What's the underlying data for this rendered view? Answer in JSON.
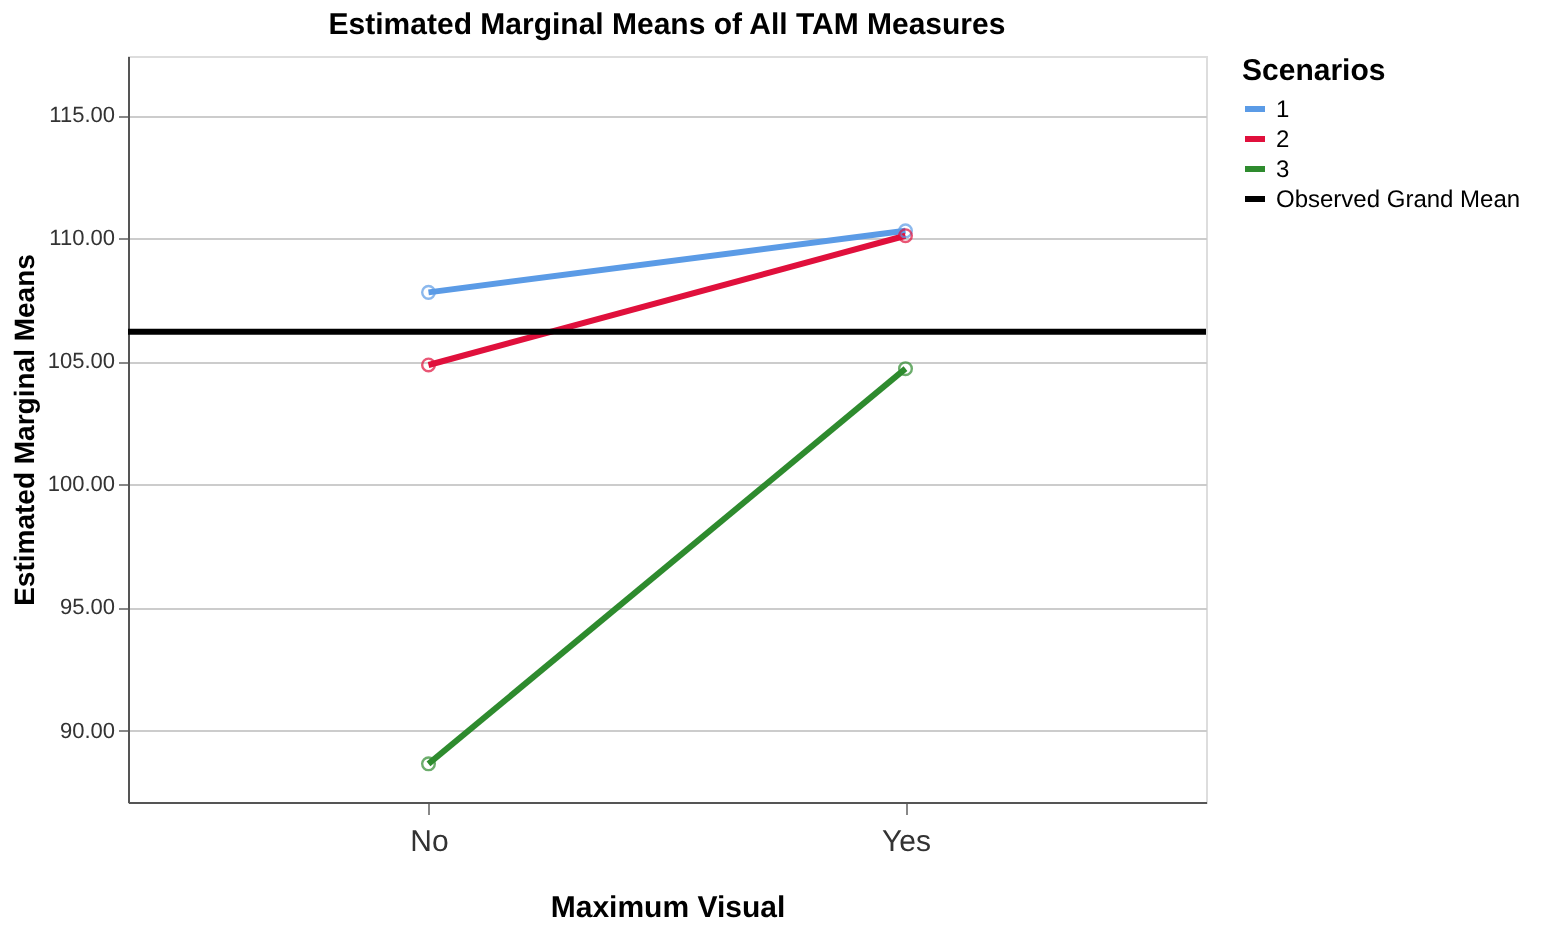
{
  "chart_data": {
    "type": "line",
    "title": "Estimated Marginal Means of All TAM Measures",
    "xlabel": "Maximum Visual",
    "ylabel": "Estimated Marginal Means",
    "legend_title": "Scenarios",
    "categories": [
      "No",
      "Yes"
    ],
    "series": [
      {
        "name": "1",
        "color": "#5b9be6",
        "values": [
          107.8,
          110.3
        ]
      },
      {
        "name": "2",
        "color": "#e0103c",
        "values": [
          104.85,
          110.1
        ]
      },
      {
        "name": "3",
        "color": "#2e8b2e",
        "values": [
          88.65,
          104.7
        ]
      }
    ],
    "ref_lines": [
      {
        "axis": "y",
        "value": 106.2,
        "label": "Observed Grand Mean",
        "color": "#000000"
      }
    ],
    "ylim": [
      87.1,
      117.4
    ],
    "yticks": [
      {
        "value": 90,
        "label": "90.00"
      },
      {
        "value": 95,
        "label": "95.00"
      },
      {
        "value": 100,
        "label": "100.00"
      },
      {
        "value": 105,
        "label": "105.00"
      },
      {
        "value": 110,
        "label": "110.00"
      },
      {
        "value": 115,
        "label": "115.00"
      }
    ],
    "grid": "y",
    "legend": "top right",
    "marker": "circle",
    "line_style": "solid"
  }
}
